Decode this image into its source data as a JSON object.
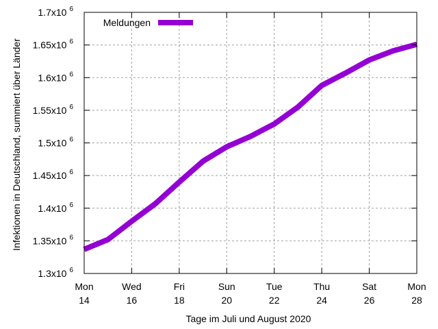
{
  "chart_data": {
    "type": "line",
    "xlabel": "Tage im Juli und August 2020",
    "ylabel": "Infektionen in Deutschland, summiert über Länder",
    "xlim": [
      14,
      28
    ],
    "ylim": [
      1300000,
      1700000
    ],
    "grid": true,
    "legend_position": "top-left",
    "x_ticks": [
      {
        "value": 14,
        "weekday": "Mon",
        "day": "14"
      },
      {
        "value": 16,
        "weekday": "Wed",
        "day": "16"
      },
      {
        "value": 18,
        "weekday": "Fri",
        "day": "18"
      },
      {
        "value": 20,
        "weekday": "Sun",
        "day": "20"
      },
      {
        "value": 22,
        "weekday": "Tue",
        "day": "22"
      },
      {
        "value": 24,
        "weekday": "Thu",
        "day": "24"
      },
      {
        "value": 26,
        "weekday": "Sat",
        "day": "26"
      },
      {
        "value": 28,
        "weekday": "Mon",
        "day": "28"
      }
    ],
    "y_ticks": [
      {
        "value": 1300000,
        "mantissa": "1.3x10",
        "exponent": "6"
      },
      {
        "value": 1350000,
        "mantissa": "1.35x10",
        "exponent": "6"
      },
      {
        "value": 1400000,
        "mantissa": "1.4x10",
        "exponent": "6"
      },
      {
        "value": 1450000,
        "mantissa": "1.45x10",
        "exponent": "6"
      },
      {
        "value": 1500000,
        "mantissa": "1.5x10",
        "exponent": "6"
      },
      {
        "value": 1550000,
        "mantissa": "1.55x10",
        "exponent": "6"
      },
      {
        "value": 1600000,
        "mantissa": "1.6x10",
        "exponent": "6"
      },
      {
        "value": 1650000,
        "mantissa": "1.65x10",
        "exponent": "6"
      },
      {
        "value": 1700000,
        "mantissa": "1.7x10",
        "exponent": "6"
      }
    ],
    "series": [
      {
        "name": "Meldungen",
        "color": "#9400d3",
        "x": [
          14,
          15,
          16,
          17,
          18,
          19,
          20,
          21,
          22,
          23,
          24,
          25,
          26,
          27,
          28
        ],
        "y": [
          1337000,
          1352000,
          1380000,
          1407000,
          1440000,
          1472000,
          1494000,
          1510000,
          1529000,
          1555000,
          1588000,
          1607000,
          1627000,
          1641000,
          1651000
        ]
      }
    ]
  }
}
